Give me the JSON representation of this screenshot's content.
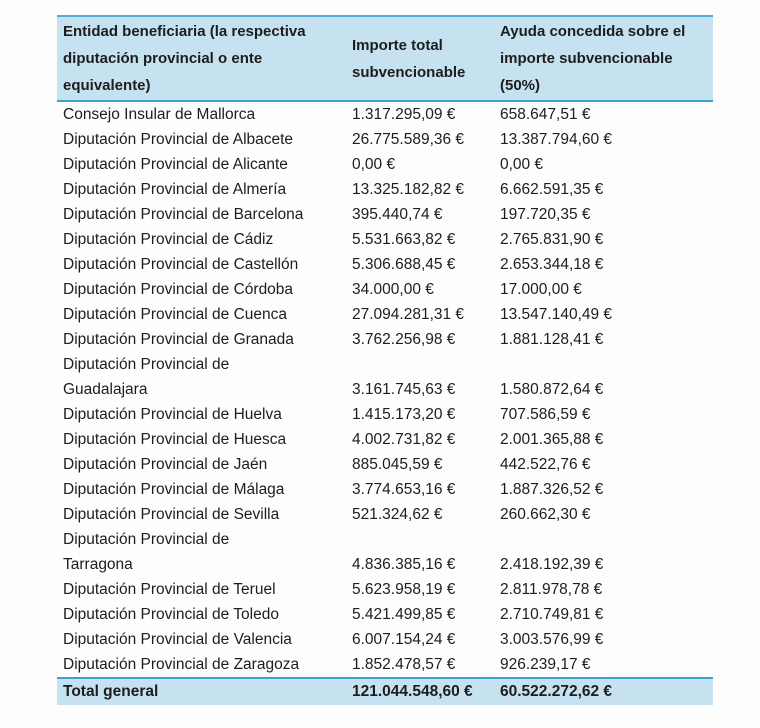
{
  "colors": {
    "header_background": "#c6e2f0",
    "total_row_background": "#c6e2f0",
    "rule_blue": "#3ba2cd",
    "top_rule_blue": "#55aed3",
    "text": "#1d1d1d",
    "page_background": "#fdfdfd"
  },
  "table": {
    "columns": {
      "entity": "Entidad beneficiaria (la respectiva\ndiputación provincial o ente\nequivalente)",
      "importe": "Importe total\nsubvencionable",
      "ayuda": "Ayuda concedida sobre el\nimporte subvencionable\n(50%)"
    },
    "rows": [
      {
        "entity": "Consejo Insular de Mallorca",
        "importe": "1.317.295,09 €",
        "ayuda": "658.647,51 €"
      },
      {
        "entity": "Diputación Provincial de Albacete",
        "importe": "26.775.589,36 €",
        "ayuda": "13.387.794,60 €"
      },
      {
        "entity": "Diputación Provincial de Alicante",
        "importe": "0,00 €",
        "ayuda": "0,00 €"
      },
      {
        "entity": "Diputación Provincial de Almería",
        "importe": "13.325.182,82 €",
        "ayuda": "6.662.591,35 €"
      },
      {
        "entity": "Diputación Provincial de Barcelona",
        "importe": "395.440,74 €",
        "ayuda": "197.720,35 €"
      },
      {
        "entity": "Diputación Provincial de Cádiz",
        "importe": "5.531.663,82 €",
        "ayuda": "2.765.831,90 €"
      },
      {
        "entity": "Diputación Provincial de Castellón",
        "importe": "5.306.688,45 €",
        "ayuda": "2.653.344,18 €"
      },
      {
        "entity": "Diputación Provincial de Córdoba",
        "importe": "34.000,00 €",
        "ayuda": "17.000,00 €"
      },
      {
        "entity": "Diputación Provincial de Cuenca",
        "importe": "27.094.281,31 €",
        "ayuda": "13.547.140,49 €"
      },
      {
        "entity": "Diputación Provincial de Granada",
        "importe": "3.762.256,98 €",
        "ayuda": "1.881.128,41 €"
      },
      {
        "entity": "Diputación Provincial de\nGuadalajara",
        "importe": "3.161.745,63 €",
        "ayuda": "1.580.872,64 €"
      },
      {
        "entity": "Diputación Provincial de Huelva",
        "importe": "1.415.173,20 €",
        "ayuda": "707.586,59 €"
      },
      {
        "entity": "Diputación Provincial de Huesca",
        "importe": "4.002.731,82 €",
        "ayuda": "2.001.365,88 €"
      },
      {
        "entity": "Diputación Provincial de Jaén",
        "importe": "885.045,59 €",
        "ayuda": "442.522,76 €"
      },
      {
        "entity": "Diputación Provincial de Málaga",
        "importe": "3.774.653,16 €",
        "ayuda": "1.887.326,52 €"
      },
      {
        "entity": "Diputación Provincial de Sevilla",
        "importe": "521.324,62 €",
        "ayuda": "260.662,30 €"
      },
      {
        "entity": "Diputación Provincial de\nTarragona",
        "importe": "4.836.385,16 €",
        "ayuda": "2.418.192,39 €"
      },
      {
        "entity": "Diputación Provincial de Teruel",
        "importe": "5.623.958,19 €",
        "ayuda": "2.811.978,78 €"
      },
      {
        "entity": "Diputación Provincial de Toledo",
        "importe": "5.421.499,85 €",
        "ayuda": "2.710.749,81 €"
      },
      {
        "entity": "Diputación Provincial de Valencia",
        "importe": "6.007.154,24 €",
        "ayuda": "3.003.576,99 €"
      },
      {
        "entity": "Diputación Provincial de Zaragoza",
        "importe": "1.852.478,57 €",
        "ayuda": "926.239,17 €"
      }
    ],
    "footer": {
      "label": "Total general",
      "importe": "121.044.548,60 €",
      "ayuda": "60.522.272,62 €"
    }
  }
}
